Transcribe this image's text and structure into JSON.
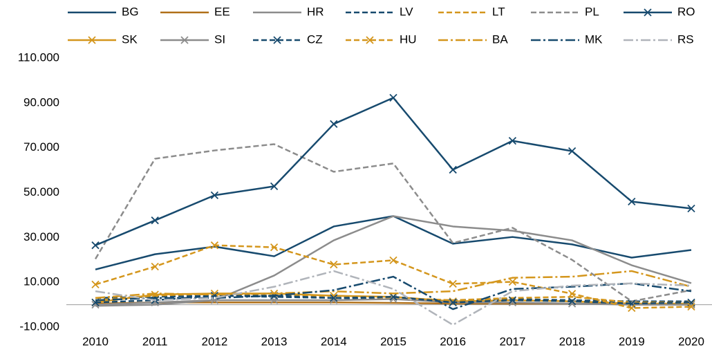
{
  "chart_data": {
    "type": "line",
    "categories": [
      "2010",
      "2011",
      "2012",
      "2013",
      "2014",
      "2015",
      "2016",
      "2017",
      "2018",
      "2019",
      "2020"
    ],
    "ylim": [
      -10000,
      110000
    ],
    "yticks": [
      {
        "value": -10000,
        "label": "-10.000"
      },
      {
        "value": 10000,
        "label": "10.000"
      },
      {
        "value": 30000,
        "label": "30.000"
      },
      {
        "value": 50000,
        "label": "50.000"
      },
      {
        "value": 70000,
        "label": "70.000"
      },
      {
        "value": 90000,
        "label": "90.000"
      },
      {
        "value": 110000,
        "label": "110.000"
      }
    ],
    "grid": false,
    "legend": "top",
    "series": [
      {
        "name": "BG",
        "color": "#174A6E",
        "dash": "solid",
        "marker": "none",
        "values": [
          15700,
          22500,
          25900,
          21600,
          34900,
          39500,
          27200,
          30200,
          26900,
          21000,
          24400
        ]
      },
      {
        "name": "EE",
        "color": "#B07018",
        "dash": "solid",
        "marker": "none",
        "values": [
          500,
          1000,
          1000,
          1000,
          1000,
          800,
          500,
          500,
          500,
          300,
          300
        ]
      },
      {
        "name": "HR",
        "color": "#8C8C8C",
        "dash": "solid",
        "marker": "none",
        "values": [
          -500,
          0,
          2000,
          13000,
          28700,
          39500,
          34900,
          33000,
          28700,
          17600,
          9600
        ]
      },
      {
        "name": "LV",
        "color": "#174A6E",
        "dash": "dash",
        "marker": "none",
        "values": [
          3000,
          3500,
          4000,
          3500,
          3000,
          2500,
          2000,
          2500,
          2000,
          1500,
          1500
        ]
      },
      {
        "name": "LT",
        "color": "#D4961C",
        "dash": "dash",
        "marker": "none",
        "values": [
          2000,
          4000,
          5000,
          4000,
          4000,
          3000,
          2000,
          3000,
          3500,
          1000,
          1000
        ]
      },
      {
        "name": "PL",
        "color": "#8C8C8C",
        "dash": "dash",
        "marker": "none",
        "values": [
          20400,
          65100,
          68800,
          71600,
          59300,
          63000,
          27500,
          34300,
          20000,
          1500,
          6500
        ]
      },
      {
        "name": "RO",
        "color": "#174A6E",
        "dash": "solid",
        "marker": "x",
        "values": [
          26500,
          37600,
          48800,
          52800,
          80600,
          92300,
          60200,
          73100,
          68500,
          46000,
          42900
        ]
      },
      {
        "name": "SK",
        "color": "#D4961C",
        "dash": "solid",
        "marker": "x",
        "values": [
          1000,
          4500,
          5000,
          5000,
          4000,
          3500,
          1500,
          2000,
          1500,
          500,
          500
        ]
      },
      {
        "name": "SI",
        "color": "#8C8C8C",
        "dash": "solid",
        "marker": "x",
        "values": [
          0,
          1000,
          2000,
          2000,
          2000,
          2500,
          1000,
          1000,
          500,
          0,
          0
        ]
      },
      {
        "name": "CZ",
        "color": "#174A6E",
        "dash": "dash",
        "marker": "x",
        "values": [
          1000,
          2000,
          4000,
          4000,
          3000,
          3500,
          1000,
          2000,
          1500,
          500,
          1000
        ]
      },
      {
        "name": "HU",
        "color": "#D4961C",
        "dash": "dash",
        "marker": "x",
        "values": [
          9000,
          17000,
          26500,
          25600,
          17900,
          19800,
          9300,
          10200,
          4900,
          -1500,
          -900
        ]
      },
      {
        "name": "BA",
        "color": "#D4961C",
        "dash": "dashdot",
        "marker": "none",
        "values": [
          3000,
          5000,
          4500,
          5000,
          6000,
          5000,
          6000,
          12000,
          12500,
          15000,
          8000
        ]
      },
      {
        "name": "MK",
        "color": "#174A6E",
        "dash": "dashdot",
        "marker": "none",
        "values": [
          2000,
          3000,
          3000,
          4000,
          6500,
          12500,
          -2000,
          7000,
          8000,
          9500,
          6000
        ]
      },
      {
        "name": "RS",
        "color": "#B0B4BA",
        "dash": "dashdot",
        "marker": "none",
        "values": [
          6000,
          2000,
          3000,
          8000,
          15000,
          7000,
          -9000,
          6000,
          8500,
          9500,
          8500
        ]
      }
    ]
  }
}
